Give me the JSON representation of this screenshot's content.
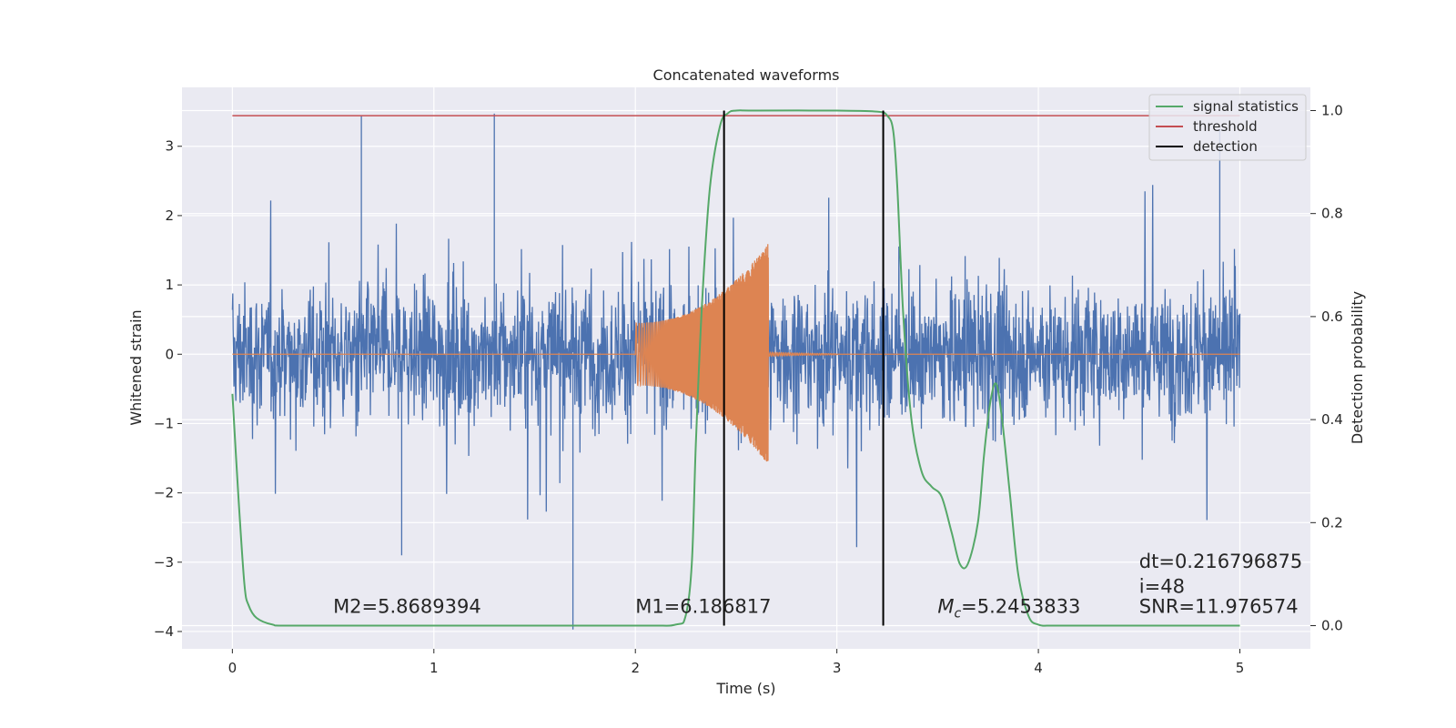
{
  "chart_data": {
    "type": "line",
    "title": "Concatenated waveforms",
    "xlabel": "Time (s)",
    "ylabel": "Whitened strain",
    "y2label": "Detection probability",
    "xlim": [
      -0.25,
      5.35
    ],
    "ylim": [
      -4.25,
      3.85
    ],
    "y2lim": [
      -0.045,
      1.045
    ],
    "xticks": [
      0,
      1,
      2,
      3,
      4,
      5
    ],
    "xtick_labels": [
      "0",
      "1",
      "2",
      "3",
      "4",
      "5"
    ],
    "yticks": [
      -4,
      -3,
      -2,
      -1,
      0,
      1,
      2,
      3
    ],
    "ytick_labels": [
      "−4",
      "−3",
      "−2",
      "−1",
      "0",
      "1",
      "2",
      "3"
    ],
    "y2ticks": [
      0.0,
      0.2,
      0.4,
      0.6,
      0.8,
      1.0
    ],
    "y2tick_labels": [
      "0.0",
      "0.2",
      "0.4",
      "0.6",
      "0.8",
      "1.0"
    ],
    "grid": true,
    "legend_position": "top-right",
    "series": [
      {
        "name": "",
        "axis": "left",
        "kind": "noise",
        "color": "#4c72b0",
        "x_range": [
          0,
          5
        ],
        "envelope": {
          "typical_upper": 1.8,
          "typical_lower": -2.0,
          "spikes": [
            {
              "x": 0.64,
              "y": 3.45
            },
            {
              "x": 1.3,
              "y": 3.47
            },
            {
              "x": 1.69,
              "y": -3.97
            },
            {
              "x": 0.84,
              "y": -2.9
            },
            {
              "x": 4.9,
              "y": 3.25
            }
          ]
        }
      },
      {
        "name": "",
        "axis": "left",
        "kind": "chirp",
        "color": "#dd8452",
        "x_range": [
          0,
          5
        ],
        "chirp_start": 2.0,
        "chirp_peak": 2.66,
        "ringdown_end": 3.0,
        "amplitude_start": 0.45,
        "amplitude_peak": 1.6
      },
      {
        "name": "signal statistics",
        "axis": "right",
        "color": "#55a868",
        "x": [
          0,
          0.03,
          0.06,
          0.08,
          0.12,
          0.2,
          0.3,
          1.0,
          2.0,
          2.2,
          2.25,
          2.28,
          2.3,
          2.33,
          2.37,
          2.42,
          2.46,
          2.5,
          2.6,
          3.0,
          3.2,
          3.25,
          3.28,
          3.3,
          3.33,
          3.37,
          3.42,
          3.47,
          3.52,
          3.57,
          3.61,
          3.65,
          3.7,
          3.73,
          3.76,
          3.79,
          3.82,
          3.86,
          3.9,
          3.95,
          4.0,
          4.1,
          4.5,
          5.0
        ],
        "y": [
          0.45,
          0.25,
          0.08,
          0.04,
          0.015,
          0.002,
          0.0,
          0.0,
          0.0,
          0.002,
          0.02,
          0.12,
          0.35,
          0.62,
          0.85,
          0.97,
          0.995,
          1.0,
          1.0,
          1.0,
          0.998,
          0.99,
          0.96,
          0.85,
          0.6,
          0.4,
          0.3,
          0.27,
          0.25,
          0.18,
          0.12,
          0.12,
          0.2,
          0.33,
          0.43,
          0.47,
          0.4,
          0.25,
          0.1,
          0.02,
          0.002,
          0.0,
          0.0,
          0.0
        ]
      },
      {
        "name": "threshold",
        "axis": "right",
        "color": "#c44e52",
        "x": [
          0,
          5
        ],
        "y": [
          0.99,
          0.99
        ]
      },
      {
        "name": "detection",
        "axis": "right",
        "color": "#000000",
        "vlines": [
          2.44,
          3.23
        ],
        "y_range": [
          0,
          1
        ]
      }
    ],
    "annotations": [
      {
        "text": "M2=5.8689394",
        "x": 0.5,
        "y": -3.73
      },
      {
        "text": "M1=6.186817",
        "x": 2.0,
        "y": -3.73
      },
      {
        "text_main": "M",
        "text_sub": "c",
        "text_rest": "=5.2453833",
        "x": 3.5,
        "y": -3.73
      },
      {
        "text": "dt=0.216796875",
        "x": 4.5,
        "y": -3.08
      },
      {
        "text": " i=48",
        "x": 4.5,
        "y": -3.44
      },
      {
        "text": "SNR=11.976574",
        "x": 4.5,
        "y": -3.73
      }
    ]
  }
}
